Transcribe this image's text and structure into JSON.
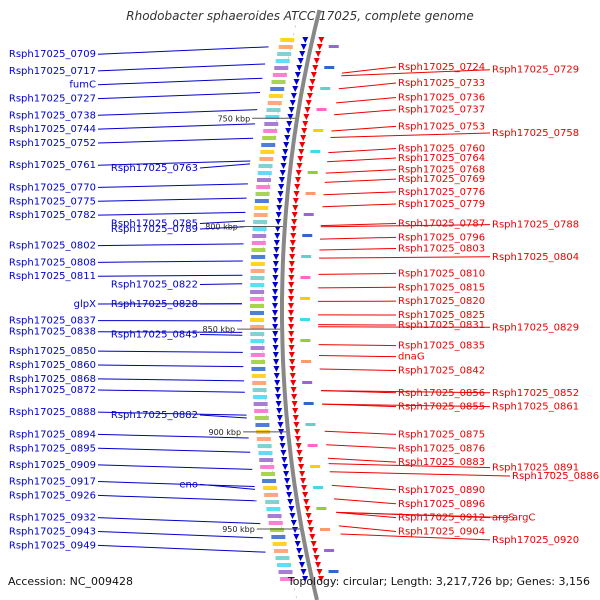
{
  "header": {
    "title": "Rhodobacter sphaeroides ATCC 17025, complete genome"
  },
  "footer": {
    "accession": "Accession: NC_009428",
    "summary": "Topology: circular; Length: 3,217,726 bp; Genes: 3,156"
  },
  "colors": {
    "left_strand": "#0000cc",
    "right_strand": "#ee0000",
    "backbone": "#888888"
  },
  "ticks": [
    {
      "label": "750 kbp",
      "pos": 0.15
    },
    {
      "label": "800 kbp",
      "pos": 0.345
    },
    {
      "label": "850 kbp",
      "pos": 0.53
    },
    {
      "label": "900 kbp",
      "pos": 0.715
    },
    {
      "label": "950 kbp",
      "pos": 0.89
    }
  ],
  "left_labels": [
    {
      "text": "Rsph17025_0709",
      "pos": 0.04
    },
    {
      "text": "Rsph17025_0717",
      "pos": 0.07
    },
    {
      "text": "fumC",
      "pos": 0.095
    },
    {
      "text": "Rsph17025_0727",
      "pos": 0.12
    },
    {
      "text": "Rsph17025_0738",
      "pos": 0.15
    },
    {
      "text": "Rsph17025_0744",
      "pos": 0.175
    },
    {
      "text": "Rsph17025_0752",
      "pos": 0.2
    },
    {
      "text": "Rsph17025_0761",
      "pos": 0.24
    },
    {
      "text": "Rsph17025_0763",
      "pos": 0.245
    },
    {
      "text": "Rsph17025_0770",
      "pos": 0.28
    },
    {
      "text": "Rsph17025_0775",
      "pos": 0.305
    },
    {
      "text": "Rsph17025_0782",
      "pos": 0.33
    },
    {
      "text": "Rsph17025_0785",
      "pos": 0.345
    },
    {
      "text": "Rsph17025_0789",
      "pos": 0.355
    },
    {
      "text": "Rsph17025_0802",
      "pos": 0.385
    },
    {
      "text": "Rsph17025_0808",
      "pos": 0.415
    },
    {
      "text": "Rsph17025_0811",
      "pos": 0.44
    },
    {
      "text": "Rsph17025_0822",
      "pos": 0.455
    },
    {
      "text": "glpX",
      "pos": 0.49
    },
    {
      "text": "Rsph17025_0828",
      "pos": 0.49
    },
    {
      "text": "Rsph17025_0837",
      "pos": 0.52
    },
    {
      "text": "Rsph17025_0838",
      "pos": 0.54
    },
    {
      "text": "Rsph17025_0845",
      "pos": 0.545
    },
    {
      "text": "Rsph17025_0850",
      "pos": 0.575
    },
    {
      "text": "Rsph17025_0860",
      "pos": 0.6
    },
    {
      "text": "Rsph17025_0868",
      "pos": 0.625
    },
    {
      "text": "Rsph17025_0872",
      "pos": 0.645
    },
    {
      "text": "Rsph17025_0888",
      "pos": 0.685
    },
    {
      "text": "Rsph17025_0882",
      "pos": 0.69
    },
    {
      "text": "Rsph17025_0894",
      "pos": 0.725
    },
    {
      "text": "Rsph17025_0895",
      "pos": 0.75
    },
    {
      "text": "Rsph17025_0909",
      "pos": 0.78
    },
    {
      "text": "Rsph17025_0917",
      "pos": 0.81
    },
    {
      "text": "eno",
      "pos": 0.815
    },
    {
      "text": "Rsph17025_0926",
      "pos": 0.835
    },
    {
      "text": "Rsph17025_0932",
      "pos": 0.875
    },
    {
      "text": "Rsph17025_0943",
      "pos": 0.9
    },
    {
      "text": "Rsph17025_0949",
      "pos": 0.925
    }
  ],
  "right_labels": [
    {
      "text": "Rsph17025_0724",
      "pos": 0.063
    },
    {
      "text": "Rsph17025_0729",
      "pos": 0.068
    },
    {
      "text": "Rsph17025_0733",
      "pos": 0.092
    },
    {
      "text": "Rsph17025_0736",
      "pos": 0.118
    },
    {
      "text": "Rsph17025_0737",
      "pos": 0.14
    },
    {
      "text": "Rsph17025_0753",
      "pos": 0.17
    },
    {
      "text": "Rsph17025_0758",
      "pos": 0.182
    },
    {
      "text": "Rsph17025_0760",
      "pos": 0.21
    },
    {
      "text": "Rsph17025_0764",
      "pos": 0.227
    },
    {
      "text": "Rsph17025_0768",
      "pos": 0.248
    },
    {
      "text": "Rsph17025_0769",
      "pos": 0.265
    },
    {
      "text": "Rsph17025_0776",
      "pos": 0.288
    },
    {
      "text": "Rsph17025_0779",
      "pos": 0.31
    },
    {
      "text": "Rsph17025_0787",
      "pos": 0.345
    },
    {
      "text": "Rsph17025_0788",
      "pos": 0.347
    },
    {
      "text": "Rsph17025_0796",
      "pos": 0.37
    },
    {
      "text": "Rsph17025_0803",
      "pos": 0.39
    },
    {
      "text": "Rsph17025_0804",
      "pos": 0.405
    },
    {
      "text": "Rsph17025_0810",
      "pos": 0.435
    },
    {
      "text": "Rsph17025_0815",
      "pos": 0.46
    },
    {
      "text": "Rsph17025_0820",
      "pos": 0.485
    },
    {
      "text": "Rsph17025_0825",
      "pos": 0.51
    },
    {
      "text": "Rsph17025_0831",
      "pos": 0.528
    },
    {
      "text": "Rsph17025_0829",
      "pos": 0.532
    },
    {
      "text": "Rsph17025_0835",
      "pos": 0.565
    },
    {
      "text": "dnaG",
      "pos": 0.585
    },
    {
      "text": "Rsph17025_0842",
      "pos": 0.61
    },
    {
      "text": "Rsph17025_0856",
      "pos": 0.65
    },
    {
      "text": "Rsph17025_0852",
      "pos": 0.65
    },
    {
      "text": "Rsph17025_0855",
      "pos": 0.675
    },
    {
      "text": "Rsph17025_0861",
      "pos": 0.675
    },
    {
      "text": "Rsph17025_0875",
      "pos": 0.725
    },
    {
      "text": "Rsph17025_0876",
      "pos": 0.75
    },
    {
      "text": "Rsph17025_0883",
      "pos": 0.775
    },
    {
      "text": "Rsph17025_0891",
      "pos": 0.785
    },
    {
      "text": "Rsph17025_0886",
      "pos": 0.8
    },
    {
      "text": "Rsph17025_0890",
      "pos": 0.825
    },
    {
      "text": "Rsph17025_0896",
      "pos": 0.85
    },
    {
      "text": "Rsph17025_0912",
      "pos": 0.875
    },
    {
      "text": "argS",
      "pos": 0.875
    },
    {
      "text": "argC",
      "pos": 0.875
    },
    {
      "text": "Rsph17025_0904",
      "pos": 0.9
    },
    {
      "text": "Rsph17025_0920",
      "pos": 0.915
    }
  ]
}
